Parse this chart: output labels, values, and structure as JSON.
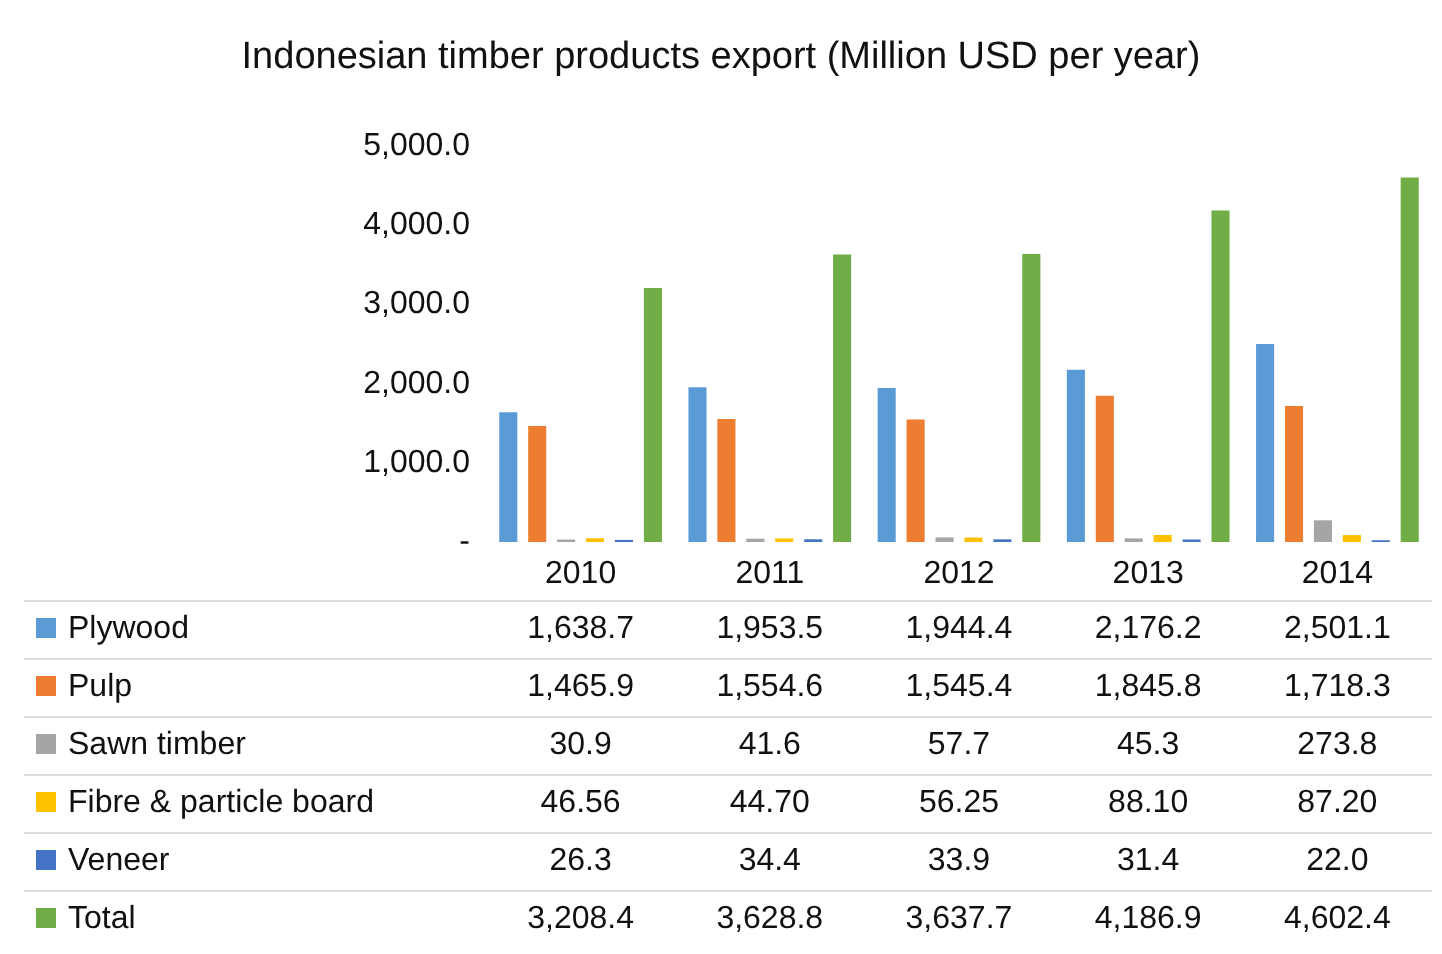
{
  "chart_data": {
    "type": "bar",
    "title": "Indonesian timber products export (Million USD per year)",
    "categories": [
      "2010",
      "2011",
      "2012",
      "2013",
      "2014"
    ],
    "series": [
      {
        "name": "Plywood",
        "color": "#5b9bd5",
        "values": [
          1638.7,
          1953.5,
          1944.4,
          2176.2,
          2501.1
        ],
        "value_labels": [
          "1,638.7",
          "1,953.5",
          "1,944.4",
          "2,176.2",
          "2,501.1"
        ]
      },
      {
        "name": "Pulp",
        "color": "#ed7d31",
        "values": [
          1465.9,
          1554.6,
          1545.4,
          1845.8,
          1718.3
        ],
        "value_labels": [
          "1,465.9",
          "1,554.6",
          "1,545.4",
          "1,845.8",
          "1,718.3"
        ]
      },
      {
        "name": "Sawn timber",
        "color": "#a5a5a5",
        "values": [
          30.9,
          41.6,
          57.7,
          45.3,
          273.8
        ],
        "value_labels": [
          "30.9",
          "41.6",
          "57.7",
          "45.3",
          "273.8"
        ]
      },
      {
        "name": "Fibre & particle board",
        "color": "#ffc000",
        "values": [
          46.56,
          44.7,
          56.25,
          88.1,
          87.2
        ],
        "value_labels": [
          "46.56",
          "44.70",
          "56.25",
          "88.10",
          "87.20"
        ]
      },
      {
        "name": "Veneer",
        "color": "#4472c4",
        "values": [
          26.3,
          34.4,
          33.9,
          31.4,
          22.0
        ],
        "value_labels": [
          "26.3",
          "34.4",
          "33.9",
          "31.4",
          "22.0"
        ]
      },
      {
        "name": "Total",
        "color": "#70ad47",
        "values": [
          3208.4,
          3628.8,
          3637.7,
          4186.9,
          4602.4
        ],
        "value_labels": [
          "3,208.4",
          "3,628.8",
          "3,637.7",
          "4,186.9",
          "4,602.4"
        ]
      }
    ],
    "ylim": [
      0,
      5000
    ],
    "yticks": [
      {
        "value": 0,
        "label": "-"
      },
      {
        "value": 1000,
        "label": "1,000.0"
      },
      {
        "value": 2000,
        "label": "2,000.0"
      },
      {
        "value": 3000,
        "label": "3,000.0"
      },
      {
        "value": 4000,
        "label": "4,000.0"
      },
      {
        "value": 5000,
        "label": "5,000.0"
      }
    ],
    "grid": false,
    "legend": "bottom"
  }
}
